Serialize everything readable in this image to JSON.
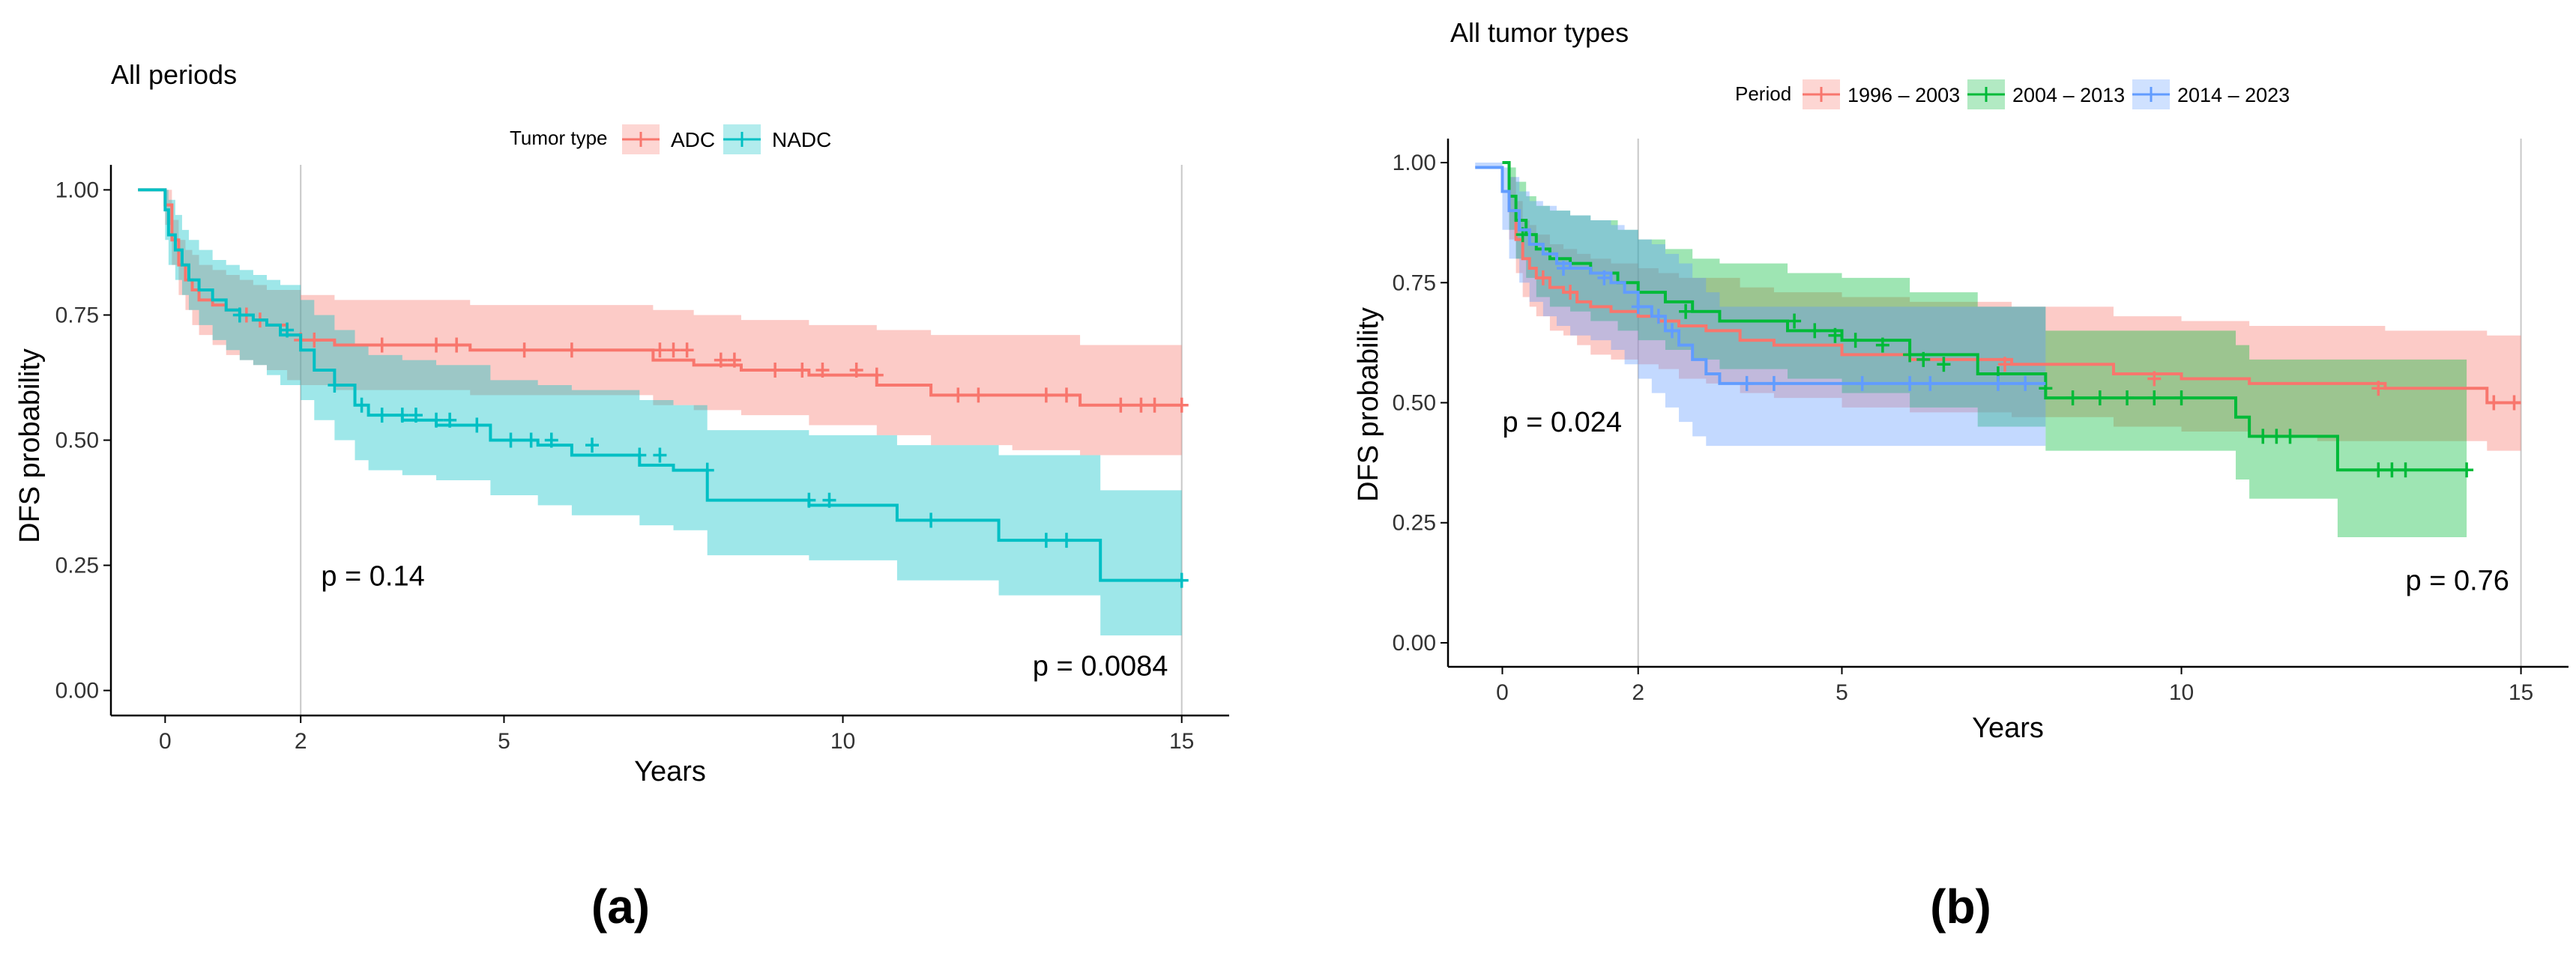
{
  "figure": {
    "panel_a_caption": "(a)",
    "panel_b_caption": "(b)"
  },
  "chart_data": [
    {
      "type": "line",
      "subtype": "kaplan-meier",
      "title": "All periods",
      "xlabel": "Years",
      "ylabel": "DFS probability",
      "xlim": [
        -0.8,
        15.7
      ],
      "ylim": [
        -0.05,
        1.05
      ],
      "xticks": [
        0,
        2,
        5,
        10,
        15
      ],
      "xtick_labels": [
        "0",
        "2",
        "5",
        "10",
        "15"
      ],
      "yticks": [
        0,
        0.25,
        0.5,
        0.75,
        1.0
      ],
      "ytick_labels": [
        "0.00",
        "0.25",
        "0.50",
        "0.75",
        "1.00"
      ],
      "vlines": [
        2,
        15
      ],
      "grid": false,
      "legend": {
        "title": "Tumor type",
        "position": "top"
      },
      "annotations": [
        {
          "text": "p = 0.14",
          "x": 2.3,
          "y": 0.21
        },
        {
          "text": "p = 0.0084",
          "x": 12.8,
          "y": 0.03
        }
      ],
      "series": [
        {
          "name": "ADC",
          "color": "#F8766D",
          "fill": "#F8766D",
          "x": [
            -0.4,
            0,
            0.1,
            0.2,
            0.3,
            0.4,
            0.5,
            0.7,
            0.9,
            1.1,
            1.3,
            1.5,
            1.8,
            2.0,
            2.5,
            3.0,
            4.5,
            6.5,
            7.2,
            7.8,
            8.5,
            9.5,
            10.5,
            11.3,
            12.5,
            13.5,
            15.0
          ],
          "y": [
            1.0,
            0.97,
            0.9,
            0.85,
            0.82,
            0.8,
            0.78,
            0.77,
            0.76,
            0.75,
            0.74,
            0.73,
            0.71,
            0.7,
            0.69,
            0.69,
            0.68,
            0.68,
            0.66,
            0.65,
            0.64,
            0.63,
            0.61,
            0.59,
            0.59,
            0.57,
            0.57
          ],
          "lower": [
            1.0,
            0.93,
            0.85,
            0.79,
            0.76,
            0.73,
            0.71,
            0.69,
            0.67,
            0.66,
            0.65,
            0.64,
            0.62,
            0.61,
            0.6,
            0.6,
            0.59,
            0.59,
            0.57,
            0.56,
            0.55,
            0.53,
            0.51,
            0.49,
            0.48,
            0.47,
            0.47
          ],
          "upper": [
            1.0,
            1.0,
            0.94,
            0.9,
            0.88,
            0.87,
            0.85,
            0.84,
            0.83,
            0.82,
            0.81,
            0.8,
            0.8,
            0.79,
            0.78,
            0.78,
            0.77,
            0.77,
            0.76,
            0.75,
            0.74,
            0.73,
            0.72,
            0.71,
            0.71,
            0.69,
            0.69
          ],
          "censor_x": [
            1.2,
            1.4,
            2.0,
            2.2,
            3.2,
            4.0,
            4.3,
            5.3,
            6.0,
            7.3,
            7.5,
            7.7,
            8.2,
            8.4,
            9.0,
            9.4,
            9.7,
            10.2,
            10.5,
            11.7,
            12.0,
            13.0,
            13.3,
            14.1,
            14.4,
            14.6,
            15.0
          ],
          "censor_y": [
            0.75,
            0.74,
            0.7,
            0.7,
            0.69,
            0.69,
            0.69,
            0.68,
            0.68,
            0.68,
            0.68,
            0.68,
            0.66,
            0.66,
            0.64,
            0.64,
            0.64,
            0.64,
            0.63,
            0.59,
            0.59,
            0.59,
            0.59,
            0.57,
            0.57,
            0.57,
            0.57
          ]
        },
        {
          "name": "NADC",
          "color": "#00BFC4",
          "fill": "#00BFC4",
          "x": [
            -0.4,
            0,
            0.05,
            0.15,
            0.25,
            0.35,
            0.5,
            0.7,
            0.9,
            1.1,
            1.3,
            1.5,
            1.7,
            2.0,
            2.2,
            2.5,
            2.8,
            3.0,
            3.5,
            4.0,
            4.8,
            5.5,
            6.0,
            7.0,
            7.5,
            8.0,
            9.5,
            10.8,
            11.5,
            12.3,
            13.8,
            15.0
          ],
          "y": [
            1.0,
            0.96,
            0.91,
            0.88,
            0.85,
            0.82,
            0.8,
            0.78,
            0.76,
            0.75,
            0.74,
            0.73,
            0.71,
            0.68,
            0.64,
            0.61,
            0.57,
            0.55,
            0.54,
            0.53,
            0.5,
            0.49,
            0.47,
            0.45,
            0.44,
            0.38,
            0.37,
            0.34,
            0.34,
            0.3,
            0.22,
            0.22
          ],
          "lower": [
            1.0,
            0.9,
            0.85,
            0.82,
            0.79,
            0.76,
            0.73,
            0.7,
            0.68,
            0.66,
            0.65,
            0.63,
            0.61,
            0.58,
            0.54,
            0.5,
            0.46,
            0.44,
            0.43,
            0.42,
            0.39,
            0.37,
            0.35,
            0.33,
            0.32,
            0.27,
            0.26,
            0.22,
            0.22,
            0.19,
            0.11,
            0.11
          ],
          "upper": [
            1.0,
            1.0,
            0.98,
            0.95,
            0.92,
            0.9,
            0.88,
            0.86,
            0.85,
            0.84,
            0.83,
            0.82,
            0.81,
            0.78,
            0.75,
            0.72,
            0.69,
            0.67,
            0.66,
            0.65,
            0.62,
            0.61,
            0.6,
            0.58,
            0.57,
            0.52,
            0.51,
            0.49,
            0.49,
            0.47,
            0.4,
            0.4
          ],
          "censor_x": [
            1.1,
            1.8,
            2.5,
            2.9,
            3.2,
            3.5,
            3.7,
            4.0,
            4.2,
            4.6,
            5.1,
            5.4,
            5.7,
            6.3,
            7.0,
            7.3,
            8.0,
            9.5,
            9.8,
            11.3,
            13.0,
            13.3,
            15.0
          ],
          "censor_y": [
            0.75,
            0.72,
            0.61,
            0.57,
            0.55,
            0.55,
            0.55,
            0.54,
            0.54,
            0.53,
            0.5,
            0.5,
            0.5,
            0.49,
            0.47,
            0.47,
            0.44,
            0.38,
            0.38,
            0.34,
            0.3,
            0.3,
            0.22
          ]
        }
      ]
    },
    {
      "type": "line",
      "subtype": "kaplan-meier",
      "title": "All tumor types",
      "xlabel": "Years",
      "ylabel": "DFS probability",
      "xlim": [
        -0.8,
        15.7
      ],
      "ylim": [
        -0.05,
        1.05
      ],
      "xticks": [
        0,
        2,
        5,
        10,
        15
      ],
      "xtick_labels": [
        "0",
        "2",
        "5",
        "10",
        "15"
      ],
      "yticks": [
        0,
        0.25,
        0.5,
        0.75,
        1.0
      ],
      "ytick_labels": [
        "0.00",
        "0.25",
        "0.50",
        "0.75",
        "1.00"
      ],
      "vlines": [
        2,
        15
      ],
      "grid": false,
      "legend": {
        "title": "Period",
        "position": "top"
      },
      "annotations": [
        {
          "text": "p = 0.024",
          "x": 0.0,
          "y": 0.44
        },
        {
          "text": "p = 0.76",
          "x": 13.3,
          "y": 0.11
        }
      ],
      "series": [
        {
          "name": "1996 – 2003",
          "color": "#F8766D",
          "fill": "#F8766D",
          "x": [
            0,
            0.1,
            0.2,
            0.3,
            0.4,
            0.5,
            0.7,
            0.9,
            1.1,
            1.3,
            1.6,
            2.0,
            2.3,
            2.6,
            3.0,
            3.5,
            4.0,
            5.0,
            6.0,
            7.5,
            9.0,
            10.0,
            11.0,
            12.0,
            13.0,
            14.5,
            15.0
          ],
          "y": [
            1.0,
            0.9,
            0.84,
            0.8,
            0.78,
            0.76,
            0.74,
            0.73,
            0.71,
            0.7,
            0.69,
            0.68,
            0.67,
            0.66,
            0.65,
            0.63,
            0.62,
            0.6,
            0.59,
            0.58,
            0.56,
            0.55,
            0.54,
            0.54,
            0.53,
            0.5,
            0.5
          ],
          "lower": [
            1.0,
            0.84,
            0.77,
            0.72,
            0.7,
            0.68,
            0.65,
            0.64,
            0.62,
            0.6,
            0.59,
            0.58,
            0.57,
            0.55,
            0.54,
            0.52,
            0.51,
            0.49,
            0.48,
            0.47,
            0.45,
            0.44,
            0.43,
            0.42,
            0.42,
            0.4,
            0.4
          ],
          "upper": [
            1.0,
            0.97,
            0.92,
            0.88,
            0.87,
            0.85,
            0.83,
            0.82,
            0.81,
            0.8,
            0.79,
            0.78,
            0.77,
            0.76,
            0.76,
            0.74,
            0.73,
            0.72,
            0.71,
            0.7,
            0.68,
            0.67,
            0.66,
            0.66,
            0.65,
            0.64,
            0.64
          ],
          "censor_x": [
            0.6,
            1.0,
            7.4,
            9.6,
            12.9,
            14.6,
            14.9
          ],
          "censor_y": [
            0.76,
            0.73,
            0.58,
            0.55,
            0.53,
            0.5,
            0.5
          ]
        },
        {
          "name": "2004 – 2013",
          "color": "#00BA38",
          "fill": "#00BA38",
          "x": [
            0,
            0.1,
            0.2,
            0.35,
            0.5,
            0.7,
            1.0,
            1.3,
            1.7,
            2.0,
            2.4,
            2.8,
            3.2,
            4.2,
            5.0,
            6.0,
            7.0,
            8.0,
            10.8,
            11.0,
            12.3,
            14.2
          ],
          "y": [
            1.0,
            0.93,
            0.88,
            0.85,
            0.82,
            0.8,
            0.79,
            0.77,
            0.75,
            0.73,
            0.71,
            0.69,
            0.67,
            0.65,
            0.63,
            0.6,
            0.56,
            0.51,
            0.47,
            0.43,
            0.36,
            0.36
          ],
          "lower": [
            1.0,
            0.86,
            0.8,
            0.76,
            0.72,
            0.7,
            0.69,
            0.67,
            0.65,
            0.63,
            0.61,
            0.59,
            0.57,
            0.55,
            0.52,
            0.49,
            0.45,
            0.4,
            0.34,
            0.3,
            0.22,
            0.22
          ],
          "upper": [
            1.0,
            0.99,
            0.96,
            0.93,
            0.91,
            0.9,
            0.89,
            0.88,
            0.86,
            0.84,
            0.82,
            0.8,
            0.79,
            0.77,
            0.76,
            0.73,
            0.7,
            0.65,
            0.62,
            0.59,
            0.59,
            0.59
          ],
          "censor_x": [
            0.3,
            2.7,
            4.3,
            4.6,
            4.9,
            5.2,
            5.6,
            6.0,
            6.2,
            6.5,
            7.3,
            8.0,
            8.4,
            8.8,
            9.2,
            9.6,
            10.0,
            11.2,
            11.4,
            11.6,
            12.9,
            13.1,
            13.3,
            14.2
          ],
          "censor_y": [
            0.85,
            0.69,
            0.67,
            0.65,
            0.64,
            0.63,
            0.62,
            0.6,
            0.59,
            0.58,
            0.56,
            0.53,
            0.51,
            0.51,
            0.51,
            0.51,
            0.51,
            0.43,
            0.43,
            0.43,
            0.36,
            0.36,
            0.36,
            0.36
          ]
        },
        {
          "name": "2014 – 2023",
          "color": "#619CFF",
          "fill": "#619CFF",
          "x": [
            -0.4,
            0,
            0.1,
            0.25,
            0.4,
            0.6,
            0.8,
            1.0,
            1.3,
            1.6,
            1.8,
            2.0,
            2.2,
            2.4,
            2.6,
            2.8,
            3.0,
            3.2,
            3.4,
            8.0
          ],
          "y": [
            0.99,
            0.94,
            0.9,
            0.86,
            0.83,
            0.81,
            0.79,
            0.78,
            0.77,
            0.75,
            0.73,
            0.7,
            0.68,
            0.65,
            0.62,
            0.59,
            0.56,
            0.54,
            0.54,
            0.54
          ],
          "lower": [
            0.99,
            0.86,
            0.8,
            0.75,
            0.71,
            0.68,
            0.66,
            0.64,
            0.63,
            0.61,
            0.58,
            0.55,
            0.52,
            0.49,
            0.46,
            0.43,
            0.41,
            0.41,
            0.41,
            0.41
          ],
          "upper": [
            1.0,
            0.99,
            0.97,
            0.94,
            0.92,
            0.91,
            0.9,
            0.89,
            0.88,
            0.87,
            0.86,
            0.84,
            0.83,
            0.81,
            0.79,
            0.76,
            0.73,
            0.7,
            0.7,
            0.7
          ],
          "censor_x": [
            0.9,
            1.5,
            2.0,
            2.3,
            2.5,
            3.6,
            4.0,
            5.3,
            6.0,
            6.3,
            7.3,
            7.7
          ],
          "censor_y": [
            0.78,
            0.76,
            0.7,
            0.68,
            0.65,
            0.54,
            0.54,
            0.54,
            0.54,
            0.54,
            0.54,
            0.54
          ]
        }
      ]
    }
  ]
}
